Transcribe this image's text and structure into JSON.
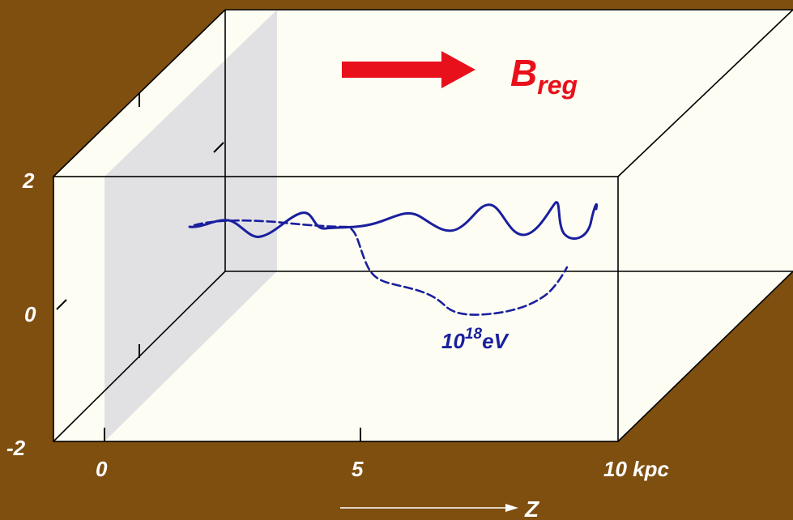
{
  "axes": {
    "y_ticks": [
      "2",
      "0",
      "-2"
    ],
    "z_ticks": [
      "0",
      "5",
      "10 kpc"
    ],
    "z_label": "Z"
  },
  "field": {
    "symbol": "B",
    "subscript": "reg",
    "color": "#e8101a"
  },
  "trajectory": {
    "energy_base": "10",
    "energy_exp": "18",
    "energy_unit": "eV",
    "color": "#1a1f9e"
  },
  "colors": {
    "background": "#7f4f10",
    "box_fill": "#fdfdf3",
    "plane": "#dcdce0",
    "label": "#ffffff"
  }
}
